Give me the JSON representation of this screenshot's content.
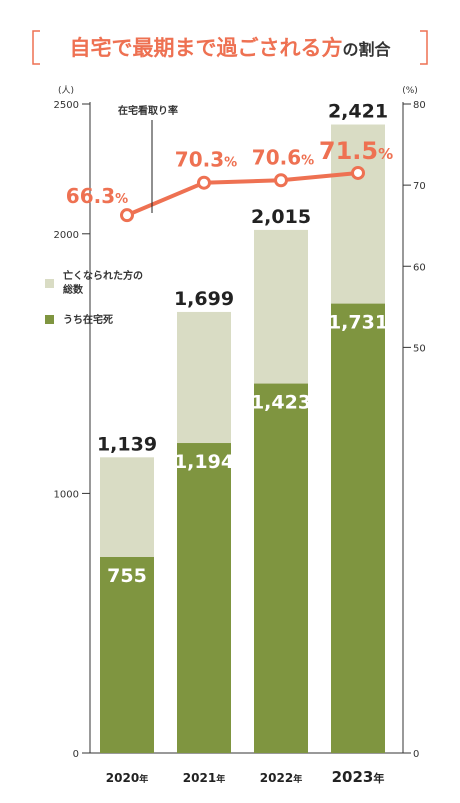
{
  "title": {
    "prefix": "自宅で最期まで過ごされる方",
    "suffix": "の割合",
    "bracket_left": "[",
    "bracket_right": "]"
  },
  "chart_data": {
    "type": "bar",
    "categories": [
      "2020",
      "2021",
      "2022",
      "2023"
    ],
    "category_suffix": "年",
    "series": [
      {
        "name": "亡くなられた方の総数",
        "values": [
          1139,
          1699,
          2015,
          2421
        ],
        "labels": [
          "1,139",
          "1,699",
          "2,015",
          "2,421"
        ],
        "color": "#d9dcc4"
      },
      {
        "name": "うち在宅死",
        "values": [
          755,
          1194,
          1423,
          1731
        ],
        "labels": [
          "755",
          "1,194",
          "1,423",
          "1,731"
        ],
        "color": "#7f9540"
      }
    ],
    "line_series": {
      "name": "在宅看取り率",
      "values": [
        66.3,
        70.3,
        70.6,
        71.5
      ],
      "labels": [
        "66.3",
        "70.3",
        "70.6",
        "71.5"
      ],
      "unit": "%",
      "color": "#ee7152"
    },
    "y_left": {
      "unit": "(人)",
      "min": 0,
      "max": 2500,
      "ticks": [
        0,
        1000,
        2000,
        2500
      ],
      "tick_labels": [
        "0",
        "1000",
        "2000",
        "2500"
      ]
    },
    "y_right": {
      "unit": "(%)",
      "min": 0,
      "max": 80,
      "ticks": [
        0,
        50,
        60,
        70,
        80
      ],
      "tick_labels": [
        "0",
        "50",
        "60",
        "70",
        "80"
      ]
    },
    "legend_position": "left"
  },
  "legend": {
    "total_line1": "亡くなられた方の",
    "total_line2": "総数",
    "home": "うち在宅死",
    "rate": "在宅看取り率"
  }
}
